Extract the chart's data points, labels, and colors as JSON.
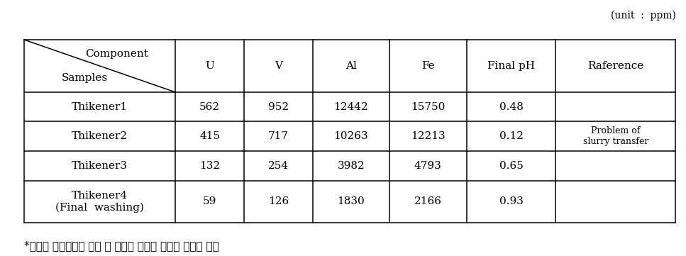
{
  "unit_label": "(unit  :  ppm)",
  "col_headers": [
    "U",
    "V",
    "Al",
    "Fe",
    "Final pH",
    "Raference"
  ],
  "rows": [
    [
      "Thikener1",
      "562",
      "952",
      "12442",
      "15750",
      "0.48",
      ""
    ],
    [
      "Thikener2",
      "415",
      "717",
      "10263",
      "12213",
      "0.12",
      "Problem of\nslurry transfer"
    ],
    [
      "Thikener3",
      "132",
      "254",
      "3982",
      "4793",
      "0.65",
      ""
    ],
    [
      "Thikener4\n(Final  washing)",
      "59",
      "126",
      "1830",
      "2166",
      "0.93",
      ""
    ]
  ],
  "footer": "*슬러리 이송펜프의 고장 및 문제로 인하여 과도한 세첵수 투입",
  "background_color": "#ffffff",
  "line_color": "#000000",
  "text_color": "#000000"
}
